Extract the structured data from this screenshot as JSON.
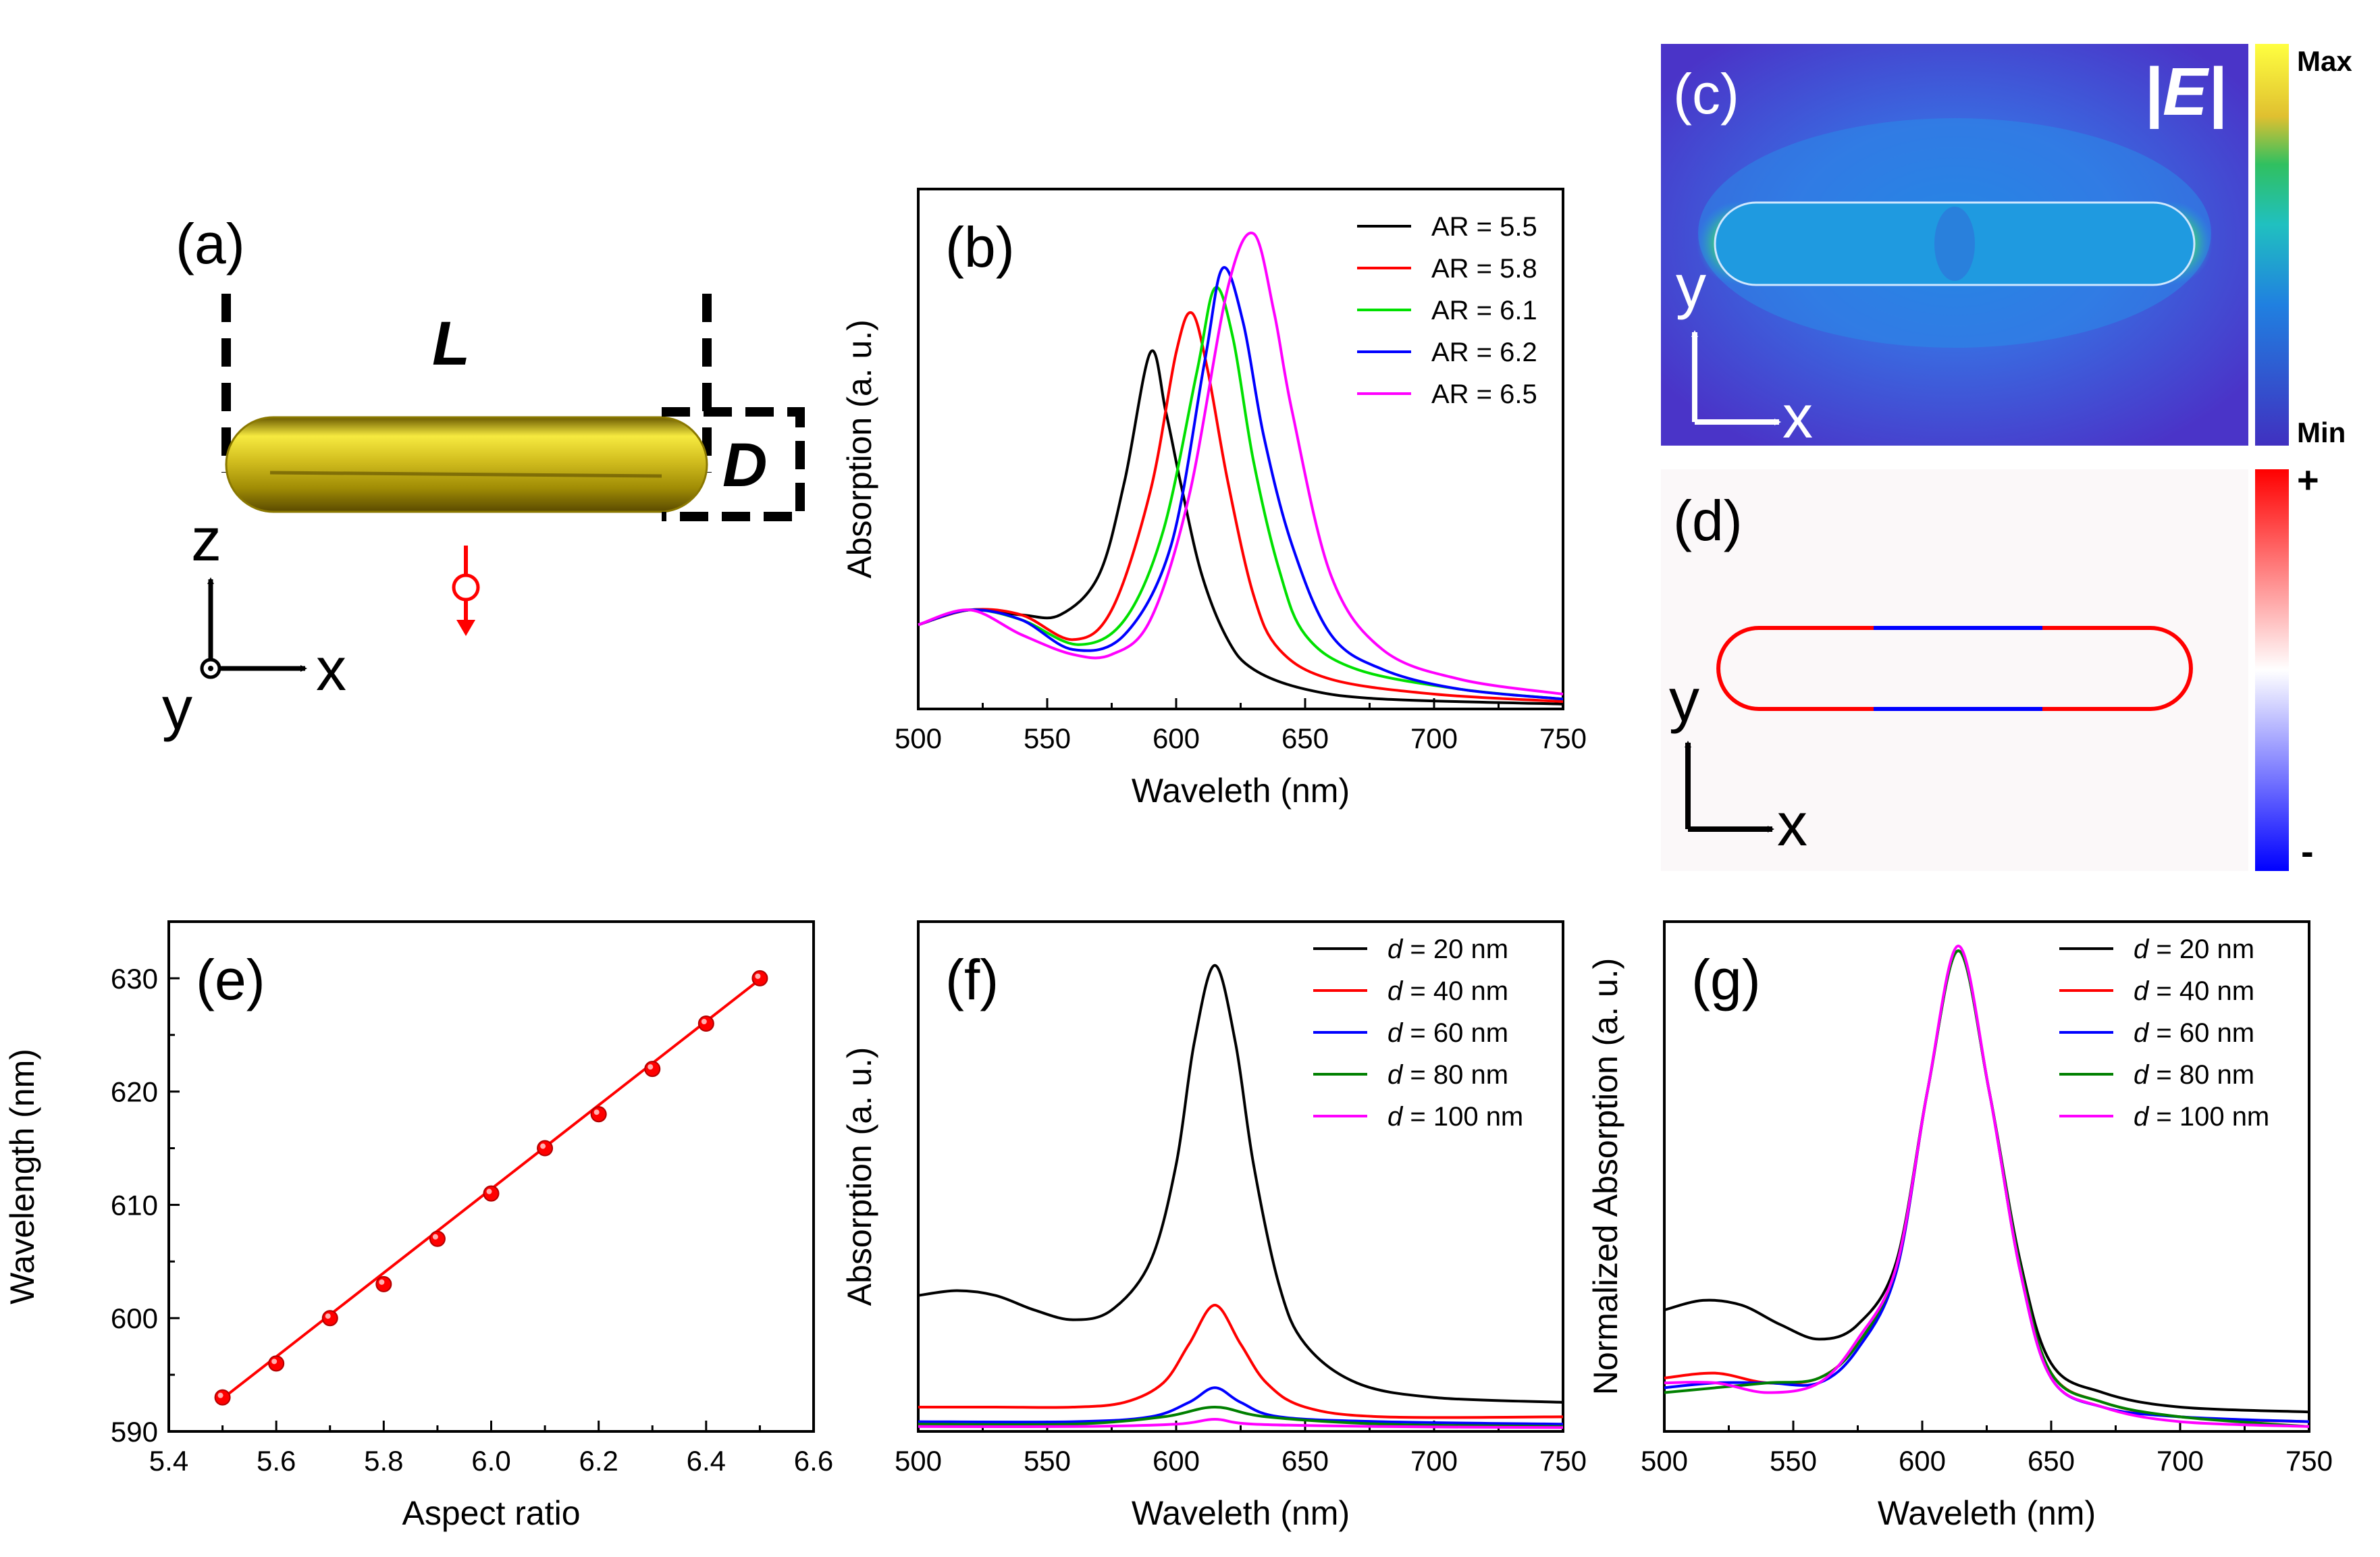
{
  "figure": {
    "panel_a": {
      "label": "(a)",
      "length_symbol": "L",
      "diameter_symbol": "D",
      "axes": {
        "z": "z",
        "x": "x",
        "y": "y"
      }
    },
    "panel_c": {
      "label": "(c)",
      "field_symbol": "|E|",
      "colorbar_max": "Max",
      "colorbar_min": "Min",
      "axes": {
        "y": "y",
        "x": "x"
      }
    },
    "panel_d": {
      "label": "(d)",
      "colorbar_plus": "+",
      "colorbar_minus": "-",
      "axes": {
        "y": "y",
        "x": "x"
      }
    }
  },
  "colors": {
    "black": "#000000",
    "red": "#ff0000",
    "green_bright": "#00e000",
    "blue": "#0000ff",
    "magenta": "#ff00ff",
    "green_dark": "#008000",
    "gold": "#d4c020"
  },
  "chart_data": [
    {
      "id": "b",
      "panel_label": "(b)",
      "type": "line",
      "xlabel": "Waveleth (nm)",
      "ylabel": "Absorption (a. u.)",
      "xlim": [
        500,
        750
      ],
      "xticks": [
        500,
        550,
        600,
        650,
        700,
        750
      ],
      "ylim": [
        0,
        1.05
      ],
      "series": [
        {
          "name": "AR = 5.5",
          "color": "#000000",
          "x": [
            500,
            520,
            540,
            555,
            570,
            580,
            590,
            596,
            602,
            610,
            620,
            630,
            650,
            680,
            750
          ],
          "y": [
            0.17,
            0.2,
            0.19,
            0.19,
            0.27,
            0.46,
            0.72,
            0.6,
            0.45,
            0.27,
            0.14,
            0.08,
            0.04,
            0.02,
            0.01
          ]
        },
        {
          "name": "AR = 5.8",
          "color": "#ff0000",
          "x": [
            500,
            520,
            540,
            560,
            575,
            590,
            600,
            606,
            612,
            620,
            630,
            640,
            660,
            700,
            750
          ],
          "y": [
            0.17,
            0.2,
            0.19,
            0.14,
            0.2,
            0.44,
            0.72,
            0.8,
            0.69,
            0.46,
            0.23,
            0.12,
            0.06,
            0.03,
            0.015
          ]
        },
        {
          "name": "AR = 6.1",
          "color": "#00e000",
          "x": [
            500,
            520,
            540,
            562,
            580,
            595,
            608,
            615,
            622,
            630,
            640,
            650,
            670,
            710,
            750
          ],
          "y": [
            0.17,
            0.2,
            0.18,
            0.13,
            0.18,
            0.36,
            0.68,
            0.85,
            0.75,
            0.5,
            0.28,
            0.15,
            0.08,
            0.04,
            0.02
          ]
        },
        {
          "name": "AR = 6.2",
          "color": "#0000ff",
          "x": [
            500,
            520,
            540,
            560,
            580,
            598,
            611,
            618,
            626,
            634,
            645,
            660,
            680,
            710,
            750
          ],
          "y": [
            0.17,
            0.2,
            0.18,
            0.12,
            0.15,
            0.33,
            0.7,
            0.89,
            0.78,
            0.55,
            0.33,
            0.15,
            0.08,
            0.04,
            0.02
          ]
        },
        {
          "name": "AR = 6.5",
          "color": "#ff00ff",
          "x": [
            500,
            520,
            540,
            560,
            575,
            590,
            605,
            620,
            630,
            638,
            645,
            660,
            680,
            710,
            750
          ],
          "y": [
            0.17,
            0.2,
            0.15,
            0.11,
            0.11,
            0.18,
            0.43,
            0.85,
            0.96,
            0.8,
            0.6,
            0.27,
            0.12,
            0.06,
            0.03
          ]
        }
      ],
      "legend": "top-right"
    },
    {
      "id": "e",
      "panel_label": "(e)",
      "type": "scatter",
      "xlabel": "Aspect ratio",
      "ylabel": "Wavelength (nm)",
      "xlim": [
        5.4,
        6.6
      ],
      "xticks": [
        5.4,
        5.6,
        5.8,
        6.0,
        6.2,
        6.4,
        6.6
      ],
      "xtick_labels": [
        "5.4",
        "5.6",
        "5.8",
        "6.0",
        "6.2",
        "6.4",
        "6.6"
      ],
      "ylim": [
        590,
        635
      ],
      "yticks": [
        590,
        600,
        610,
        620,
        630
      ],
      "series": [
        {
          "name": "simulated",
          "color": "#ff0000",
          "x": [
            5.5,
            5.6,
            5.7,
            5.8,
            5.9,
            6.0,
            6.1,
            6.2,
            6.3,
            6.4,
            6.5
          ],
          "y": [
            593,
            596,
            600,
            603,
            607,
            611,
            615,
            618,
            622,
            626,
            630
          ]
        }
      ],
      "fit": {
        "slope": 37.0,
        "intercept": 389.4
      }
    },
    {
      "id": "f",
      "panel_label": "(f)",
      "type": "line",
      "xlabel": "Waveleth (nm)",
      "ylabel": "Absorption (a. u.)",
      "xlim": [
        500,
        750
      ],
      "xticks": [
        500,
        550,
        600,
        650,
        700,
        750
      ],
      "ylim": [
        0,
        1.05
      ],
      "series": [
        {
          "name": "20 nm",
          "color": "#000000",
          "x": [
            500,
            515,
            530,
            545,
            560,
            575,
            590,
            600,
            607,
            615,
            623,
            630,
            640,
            650,
            670,
            700,
            750
          ],
          "y": [
            0.28,
            0.29,
            0.28,
            0.25,
            0.23,
            0.25,
            0.35,
            0.55,
            0.8,
            0.96,
            0.8,
            0.55,
            0.3,
            0.18,
            0.1,
            0.07,
            0.06
          ]
        },
        {
          "name": "40 nm",
          "color": "#ff0000",
          "x": [
            500,
            530,
            560,
            580,
            595,
            605,
            615,
            625,
            635,
            650,
            680,
            750
          ],
          "y": [
            0.05,
            0.05,
            0.05,
            0.06,
            0.1,
            0.18,
            0.26,
            0.18,
            0.1,
            0.05,
            0.03,
            0.03
          ]
        },
        {
          "name": "60 nm",
          "color": "#0000ff",
          "x": [
            500,
            560,
            590,
            605,
            615,
            625,
            640,
            680,
            750
          ],
          "y": [
            0.02,
            0.02,
            0.03,
            0.06,
            0.09,
            0.06,
            0.03,
            0.02,
            0.015
          ]
        },
        {
          "name": "80 nm",
          "color": "#008000",
          "x": [
            500,
            560,
            595,
            615,
            635,
            680,
            750
          ],
          "y": [
            0.015,
            0.015,
            0.03,
            0.05,
            0.03,
            0.015,
            0.01
          ]
        },
        {
          "name": "100 nm",
          "color": "#ff00ff",
          "x": [
            500,
            560,
            600,
            615,
            630,
            680,
            750
          ],
          "y": [
            0.01,
            0.01,
            0.015,
            0.025,
            0.015,
            0.01,
            0.008
          ]
        }
      ],
      "legend_prefix": "d",
      "legend_mid": " = ",
      "legend": "top-right"
    },
    {
      "id": "g",
      "panel_label": "(g)",
      "type": "line",
      "xlabel": "Waveleth (nm)",
      "ylabel": "Normalized Absorption (a. u.)",
      "xlim": [
        500,
        750
      ],
      "xticks": [
        500,
        550,
        600,
        650,
        700,
        750
      ],
      "ylim": [
        0,
        1.05
      ],
      "series": [
        {
          "name": "20 nm",
          "color": "#000000",
          "x": [
            500,
            515,
            530,
            545,
            560,
            575,
            590,
            602,
            614,
            626,
            638,
            650,
            670,
            700,
            750
          ],
          "y": [
            0.25,
            0.27,
            0.26,
            0.22,
            0.19,
            0.22,
            0.35,
            0.7,
            0.99,
            0.7,
            0.35,
            0.14,
            0.08,
            0.05,
            0.04
          ]
        },
        {
          "name": "40 nm",
          "color": "#ff0000",
          "x": [
            500,
            520,
            540,
            560,
            575,
            590,
            602,
            614,
            626,
            638,
            650,
            670,
            700,
            750
          ],
          "y": [
            0.11,
            0.12,
            0.1,
            0.11,
            0.18,
            0.33,
            0.7,
            0.99,
            0.7,
            0.33,
            0.12,
            0.06,
            0.03,
            0.02
          ]
        },
        {
          "name": "60 nm",
          "color": "#0000ff",
          "x": [
            500,
            520,
            540,
            560,
            575,
            590,
            602,
            614,
            626,
            638,
            650,
            670,
            700,
            750
          ],
          "y": [
            0.09,
            0.1,
            0.1,
            0.1,
            0.17,
            0.33,
            0.7,
            0.99,
            0.7,
            0.33,
            0.11,
            0.05,
            0.03,
            0.02
          ]
        },
        {
          "name": "80 nm",
          "color": "#008000",
          "x": [
            500,
            520,
            540,
            560,
            575,
            590,
            602,
            614,
            626,
            638,
            650,
            670,
            700,
            750
          ],
          "y": [
            0.08,
            0.09,
            0.1,
            0.11,
            0.18,
            0.34,
            0.7,
            0.99,
            0.7,
            0.34,
            0.12,
            0.06,
            0.03,
            0.01
          ]
        },
        {
          "name": "100 nm",
          "color": "#ff00ff",
          "x": [
            500,
            520,
            540,
            560,
            575,
            590,
            602,
            614,
            626,
            638,
            650,
            670,
            700,
            750
          ],
          "y": [
            0.1,
            0.1,
            0.08,
            0.1,
            0.19,
            0.34,
            0.7,
            1.0,
            0.7,
            0.33,
            0.11,
            0.05,
            0.02,
            0.01
          ]
        }
      ],
      "legend_prefix": "d",
      "legend_mid": " = ",
      "legend": "top-right"
    }
  ]
}
